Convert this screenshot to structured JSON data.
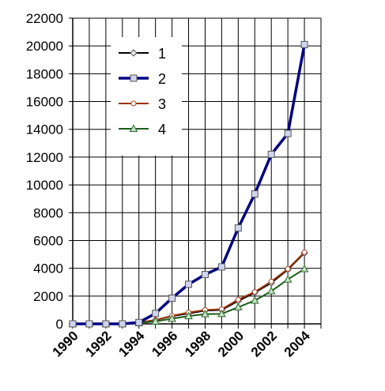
{
  "chart_data": {
    "type": "line",
    "title": "",
    "xlabel": "",
    "ylabel": "",
    "x": [
      1990,
      1991,
      1992,
      1993,
      1994,
      1995,
      1996,
      1997,
      1998,
      1999,
      2000,
      2001,
      2002,
      2003,
      2004
    ],
    "x_tick_labels": [
      "1990",
      "1992",
      "1994",
      "1996",
      "1998",
      "2000",
      "2002",
      "2004"
    ],
    "x_tick_values": [
      1990,
      1992,
      1994,
      1996,
      1998,
      2000,
      2002,
      2004
    ],
    "xlim": [
      1990,
      2005
    ],
    "ylim": [
      0,
      22000
    ],
    "y_tick_values": [
      0,
      2000,
      4000,
      6000,
      8000,
      10000,
      12000,
      14000,
      16000,
      18000,
      20000,
      22000
    ],
    "y_tick_labels": [
      "0",
      "2000",
      "4000",
      "6000",
      "8000",
      "10000",
      "12000",
      "14000",
      "16000",
      "18000",
      "20000",
      "22000"
    ],
    "grid": true,
    "legend_position": "top-left inside plot",
    "series": [
      {
        "name": "1",
        "color": "#000000",
        "marker": "diamond",
        "values": [
          0,
          0,
          0,
          0,
          80,
          280,
          550,
          750,
          950,
          1000,
          1650,
          2250,
          2950,
          3900,
          5100
        ]
      },
      {
        "name": "2",
        "color": "#000080",
        "marker": "square",
        "values": [
          0,
          0,
          0,
          0,
          100,
          750,
          1850,
          2850,
          3550,
          4100,
          6900,
          9350,
          12200,
          13700,
          20100
        ]
      },
      {
        "name": "3",
        "color": "#993300",
        "marker": "circle",
        "values": [
          0,
          0,
          0,
          0,
          100,
          270,
          580,
          820,
          1000,
          1050,
          1750,
          2300,
          3050,
          3950,
          5150
        ]
      },
      {
        "name": "4",
        "color": "#1a5c1a",
        "marker": "triangle",
        "values": [
          0,
          0,
          0,
          0,
          60,
          180,
          370,
          560,
          700,
          720,
          1200,
          1680,
          2350,
          3200,
          3950
        ]
      }
    ]
  }
}
